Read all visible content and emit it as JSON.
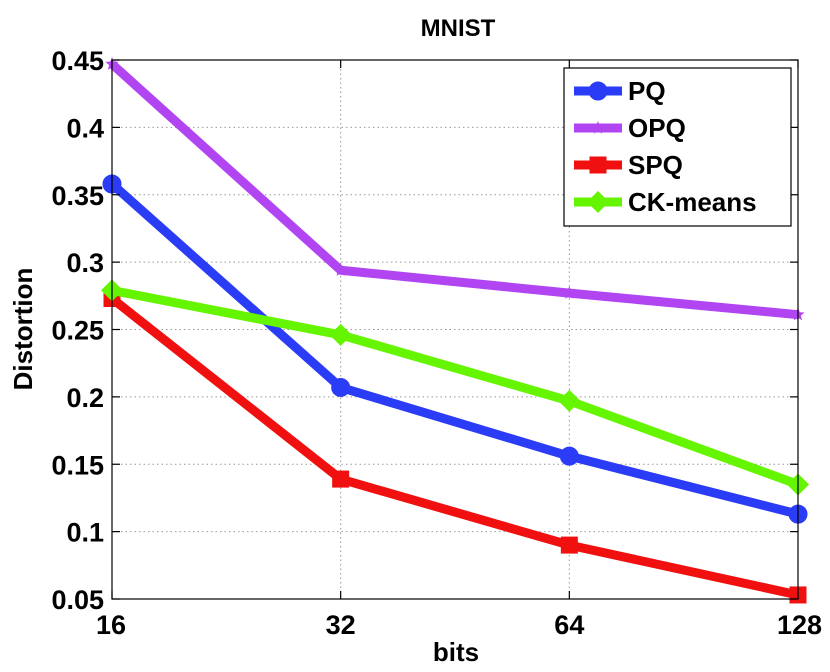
{
  "chart_data": {
    "type": "line",
    "title": "MNIST",
    "xlabel": "bits",
    "ylabel": "Distortion",
    "x": [
      16,
      32,
      64,
      128
    ],
    "x_tick_labels": [
      "16",
      "32",
      "64",
      "128"
    ],
    "x_scale": "log2",
    "ylim": [
      0.05,
      0.45
    ],
    "y_ticks": [
      0.05,
      0.1,
      0.15,
      0.2,
      0.25,
      0.3,
      0.35,
      0.4,
      0.45
    ],
    "y_tick_labels": [
      "0.05",
      "0.1",
      "0.15",
      "0.2",
      "0.25",
      "0.3",
      "0.35",
      "0.4",
      "0.45"
    ],
    "grid": true,
    "legend_position": "top-right",
    "series": [
      {
        "name": "PQ",
        "values": [
          0.358,
          0.207,
          0.156,
          0.113
        ],
        "color": "#2a3cf5",
        "marker": "circle"
      },
      {
        "name": "OPQ",
        "values": [
          0.447,
          0.294,
          0.277,
          0.261
        ],
        "color": "#b245f2",
        "marker": "star"
      },
      {
        "name": "SPQ",
        "values": [
          0.273,
          0.139,
          0.09,
          0.053
        ],
        "color": "#f01010",
        "marker": "square"
      },
      {
        "name": "CK-means",
        "values": [
          0.279,
          0.246,
          0.197,
          0.135
        ],
        "color": "#66f500",
        "marker": "diamond"
      }
    ]
  }
}
